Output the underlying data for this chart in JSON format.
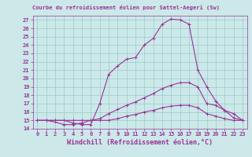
{
  "title": "Courbe du refroidissement éolien pour Sattel-Aegeri (Sw)",
  "xlabel": "Windchill (Refroidissement éolien,°C)",
  "bg_color": "#cce8e8",
  "grid_color": "#99cccc",
  "line_color": "#993399",
  "xlim": [
    -0.5,
    23.5
  ],
  "ylim": [
    14,
    27.5
  ],
  "xticks": [
    0,
    1,
    2,
    3,
    4,
    5,
    6,
    7,
    8,
    9,
    10,
    11,
    12,
    13,
    14,
    15,
    16,
    17,
    18,
    19,
    20,
    21,
    22,
    23
  ],
  "yticks": [
    14,
    15,
    16,
    17,
    18,
    19,
    20,
    21,
    22,
    23,
    24,
    25,
    26,
    27
  ],
  "line1_x": [
    0,
    1,
    2,
    3,
    4,
    5,
    6,
    7,
    8,
    9,
    10,
    11,
    12,
    13,
    14,
    15,
    16,
    17,
    18,
    19,
    20,
    21,
    22,
    23
  ],
  "line1_y": [
    15.0,
    15.0,
    15.0,
    15.0,
    14.7,
    14.5,
    14.5,
    17.0,
    20.5,
    21.5,
    22.3,
    22.5,
    24.0,
    24.8,
    26.5,
    27.1,
    27.0,
    26.5,
    21.0,
    19.0,
    17.3,
    16.2,
    15.3,
    15.0
  ],
  "line2_x": [
    0,
    1,
    2,
    3,
    4,
    5,
    6,
    7,
    8,
    9,
    10,
    11,
    12,
    13,
    14,
    15,
    16,
    17,
    18,
    19,
    20,
    21,
    22,
    23
  ],
  "line2_y": [
    15.0,
    15.0,
    14.8,
    14.5,
    14.5,
    14.7,
    15.0,
    15.2,
    15.8,
    16.3,
    16.8,
    17.2,
    17.7,
    18.2,
    18.8,
    19.2,
    19.5,
    19.5,
    19.0,
    17.0,
    16.8,
    16.2,
    15.8,
    15.0
  ],
  "line3_x": [
    0,
    1,
    2,
    3,
    4,
    5,
    6,
    7,
    8,
    9,
    10,
    11,
    12,
    13,
    14,
    15,
    16,
    17,
    18,
    19,
    20,
    21,
    22,
    23
  ],
  "line3_y": [
    15.0,
    15.0,
    15.0,
    15.0,
    15.0,
    15.0,
    15.0,
    15.0,
    15.0,
    15.2,
    15.5,
    15.7,
    16.0,
    16.2,
    16.5,
    16.7,
    16.8,
    16.8,
    16.5,
    15.8,
    15.5,
    15.2,
    15.0,
    15.0
  ],
  "title_fontsize": 5,
  "xlabel_fontsize": 6,
  "tick_fontsize": 5,
  "marker": "+"
}
